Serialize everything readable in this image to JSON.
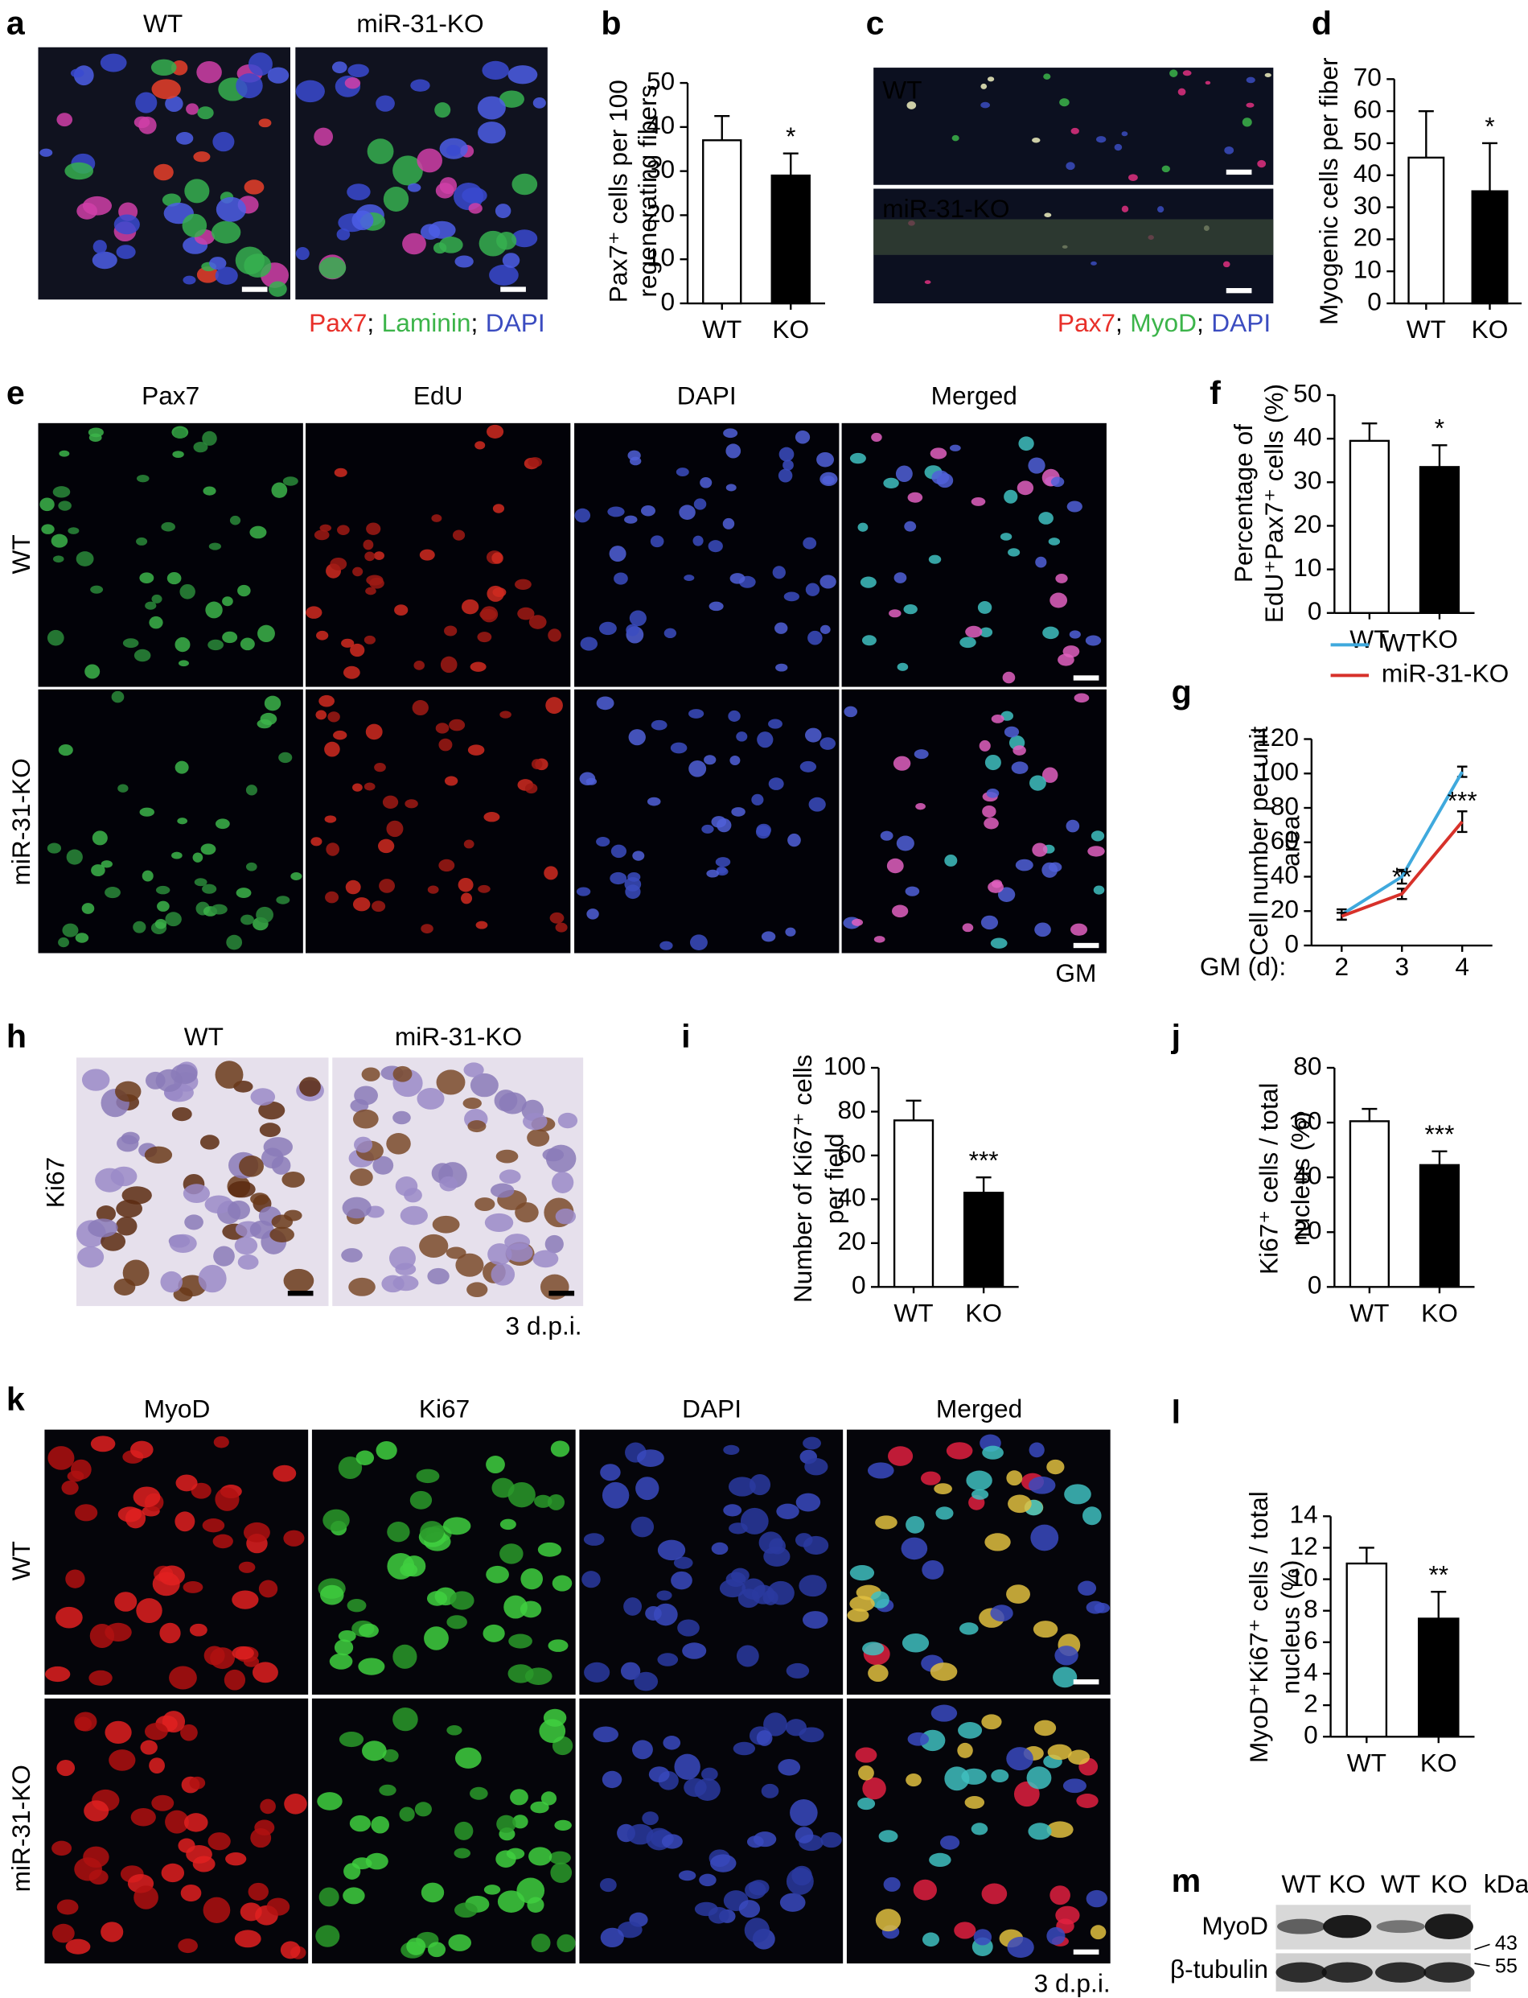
{
  "chart_data": [
    {
      "type": "bar",
      "ylabel": [
        "Pax7⁺ cells per 100",
        "regenerating fibers"
      ],
      "categories": [
        "WT",
        "KO"
      ],
      "values": [
        37,
        29
      ],
      "errors": [
        5.5,
        5
      ],
      "colors": [
        "#ffffff",
        "#000000"
      ],
      "annotation": "*",
      "ylim": [
        0,
        50
      ],
      "yticks": [
        0,
        10,
        20,
        30,
        40,
        50
      ]
    },
    {
      "type": "bar",
      "ylabel": [
        "Myogenic cells per fiber"
      ],
      "categories": [
        "WT",
        "KO"
      ],
      "values": [
        45.5,
        35
      ],
      "errors": [
        14.5,
        15
      ],
      "colors": [
        "#ffffff",
        "#000000"
      ],
      "annotation": "*",
      "ylim": [
        0,
        70
      ],
      "yticks": [
        0,
        10,
        20,
        30,
        40,
        50,
        60,
        70
      ]
    },
    {
      "type": "bar",
      "ylabel": [
        "Percentage of",
        "EdU⁺Pax7⁺ cells (%)"
      ],
      "categories": [
        "WT",
        "KO"
      ],
      "values": [
        39.5,
        33.5
      ],
      "errors": [
        4,
        5
      ],
      "colors": [
        "#ffffff",
        "#000000"
      ],
      "annotation": "*",
      "ylim": [
        0,
        50
      ],
      "yticks": [
        0,
        10,
        20,
        30,
        40,
        50
      ]
    },
    {
      "type": "line",
      "ylabel": [
        "Cell number per unit",
        "area"
      ],
      "xlabel": "GM (d):",
      "x": [
        2,
        3,
        4
      ],
      "series": [
        {
          "name": "WT",
          "color": "#3fa9dd",
          "values": [
            18,
            40,
            101
          ],
          "errors": [
            3,
            4,
            3
          ]
        },
        {
          "name": "miR-31-KO",
          "color": "#d7312a",
          "values": [
            17,
            30,
            72
          ],
          "errors": [
            2,
            3,
            6
          ]
        }
      ],
      "annotations": [
        {
          "x": 3,
          "text": "**"
        },
        {
          "x": 4,
          "text": "***"
        }
      ],
      "ylim": [
        0,
        120
      ],
      "yticks": [
        0,
        20,
        40,
        60,
        80,
        100,
        120
      ]
    },
    {
      "type": "bar",
      "ylabel": [
        "Number of Ki67⁺ cells",
        "per field"
      ],
      "categories": [
        "WT",
        "KO"
      ],
      "values": [
        76,
        43
      ],
      "errors": [
        9,
        7
      ],
      "colors": [
        "#ffffff",
        "#000000"
      ],
      "annotation": "***",
      "ylim": [
        0,
        100
      ],
      "yticks": [
        0,
        20,
        40,
        60,
        80,
        100
      ]
    },
    {
      "type": "bar",
      "ylabel": [
        "Ki67⁺ cells / total",
        "nucleus (%)"
      ],
      "categories": [
        "WT",
        "KO"
      ],
      "values": [
        60.5,
        44.5
      ],
      "errors": [
        4.5,
        5
      ],
      "colors": [
        "#ffffff",
        "#000000"
      ],
      "annotation": "***",
      "ylim": [
        0,
        80
      ],
      "yticks": [
        0,
        20,
        40,
        60,
        80
      ]
    },
    {
      "type": "bar",
      "ylabel": [
        "MyoD⁺Ki67⁺ cells / total",
        "nucleus (%)"
      ],
      "categories": [
        "WT",
        "KO"
      ],
      "values": [
        11,
        7.5
      ],
      "errors": [
        1,
        1.7
      ],
      "colors": [
        "#ffffff",
        "#000000"
      ],
      "annotation": "**",
      "ylim": [
        0,
        14
      ],
      "yticks": [
        0,
        2,
        4,
        6,
        8,
        10,
        12,
        14
      ]
    }
  ],
  "figure": {
    "panel_letters": [
      "a",
      "b",
      "c",
      "d",
      "e",
      "f",
      "g",
      "h",
      "i",
      "j",
      "k",
      "l",
      "m"
    ],
    "a": {
      "columns": [
        "WT",
        "miR-31-KO"
      ],
      "stains": [
        {
          "text": "Pax7",
          "color": "#e8302a"
        },
        {
          "text": "Laminin",
          "color": "#3cb44a"
        },
        {
          "text": "DAPI",
          "color": "#3b4cc0"
        }
      ],
      "separator": ";"
    },
    "c": {
      "rows": [
        "WT",
        "miR-31-KO"
      ],
      "stains": [
        {
          "text": "Pax7",
          "color": "#e8302a"
        },
        {
          "text": "MyoD",
          "color": "#3cb44a"
        },
        {
          "text": "DAPI",
          "color": "#3b4cc0"
        }
      ],
      "separator": ";"
    },
    "e": {
      "columns": [
        {
          "text": "Pax7",
          "color": "#3cb44a"
        },
        {
          "text": "EdU",
          "color": "#e8302a"
        },
        {
          "text": "DAPI",
          "color": "#3b4cc0"
        },
        {
          "text": "Merged",
          "color": "#000000"
        }
      ],
      "rows": [
        "WT",
        "miR-31-KO"
      ],
      "condition": "GM"
    },
    "h": {
      "columns": [
        "WT",
        "miR-31-KO"
      ],
      "row": "Ki67",
      "timepoint": "3 d.p.i."
    },
    "k": {
      "columns": [
        {
          "text": "MyoD",
          "color": "#e8302a"
        },
        {
          "text": "Ki67",
          "color": "#3cb44a"
        },
        {
          "text": "DAPI",
          "color": "#3b4cc0"
        },
        {
          "text": "Merged",
          "color": "#000000"
        }
      ],
      "rows": [
        "WT",
        "miR-31-KO"
      ],
      "timepoint": "3 d.p.i."
    },
    "m": {
      "columns": [
        "WT",
        "KO",
        "WT",
        "KO"
      ],
      "unit": "kDa",
      "rows": [
        "MyoD",
        "β-tubulin"
      ],
      "markers": [
        "43",
        "55"
      ]
    }
  }
}
